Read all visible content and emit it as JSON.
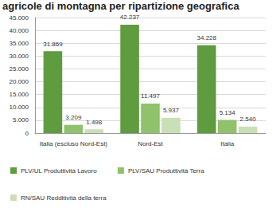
{
  "chart_data": {
    "type": "bar",
    "title": "agricole di montagna per ripartizione geografica",
    "categories": [
      "Italia (escluso Nord-Est)",
      "Nord-Est",
      "Italia"
    ],
    "series": [
      {
        "name": "PLV/UL Produttività Lavoro",
        "color": "#5f9b3f",
        "values": [
          31869,
          42237,
          34228
        ],
        "value_labels": [
          "31.869",
          "42.237",
          "34.228"
        ]
      },
      {
        "name": "PLV/SAU Produttività Terra",
        "color": "#8fc26a",
        "values": [
          3209,
          11497,
          5134
        ],
        "value_labels": [
          "3.209",
          "11.497",
          "5.134"
        ]
      },
      {
        "name": "RN/SAU Redditività della terra",
        "color": "#c9e0b6",
        "values": [
          1498,
          5937,
          2540
        ],
        "value_labels": [
          "1.498",
          "5.937",
          "2.540"
        ]
      }
    ],
    "ylim": [
      0,
      45000
    ],
    "yticks": [
      0,
      {
        "value": 5000,
        "label": "5.000"
      },
      {
        "value": 10000,
        "label": "10.000"
      },
      {
        "value": 15000,
        "label": "15.000"
      },
      {
        "value": 20000,
        "label": "20.000"
      },
      {
        "value": 25000,
        "label": "25.000"
      },
      {
        "value": 30000,
        "label": "30.000"
      },
      {
        "value": 35000,
        "label": "35.000"
      },
      {
        "value": 40000,
        "label": "40.000"
      },
      {
        "value": 45000,
        "label": "45.000"
      }
    ],
    "grid": true,
    "legend": "bottom",
    "data_labels": true
  }
}
